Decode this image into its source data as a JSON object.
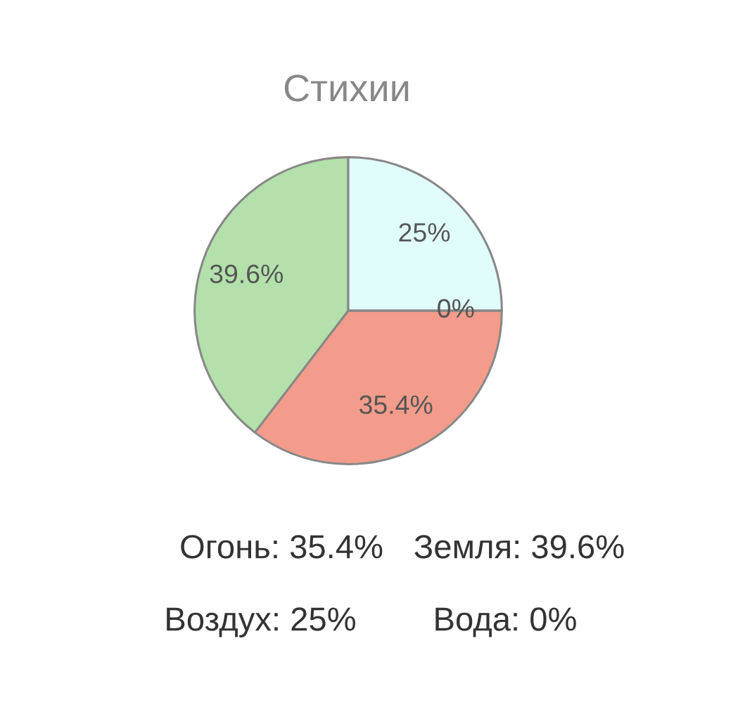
{
  "chart_data": {
    "type": "pie",
    "title": "Стихии",
    "categories": [
      null,
      null,
      null,
      null
    ],
    "values": [
      35.4,
      39.6,
      25,
      0
    ],
    "colors": [
      "#f39c8b",
      "#b4e0ab",
      "#e0fdfb",
      "#9ecae1"
    ],
    "value_labels": [
      "35.4%",
      "39.6%",
      "25%",
      "0%"
    ],
    "annotations": [
      "Огонь: 35.4%",
      "Земля: 39.6%",
      "Воздух: 25%",
      "Вода: 0%"
    ]
  }
}
